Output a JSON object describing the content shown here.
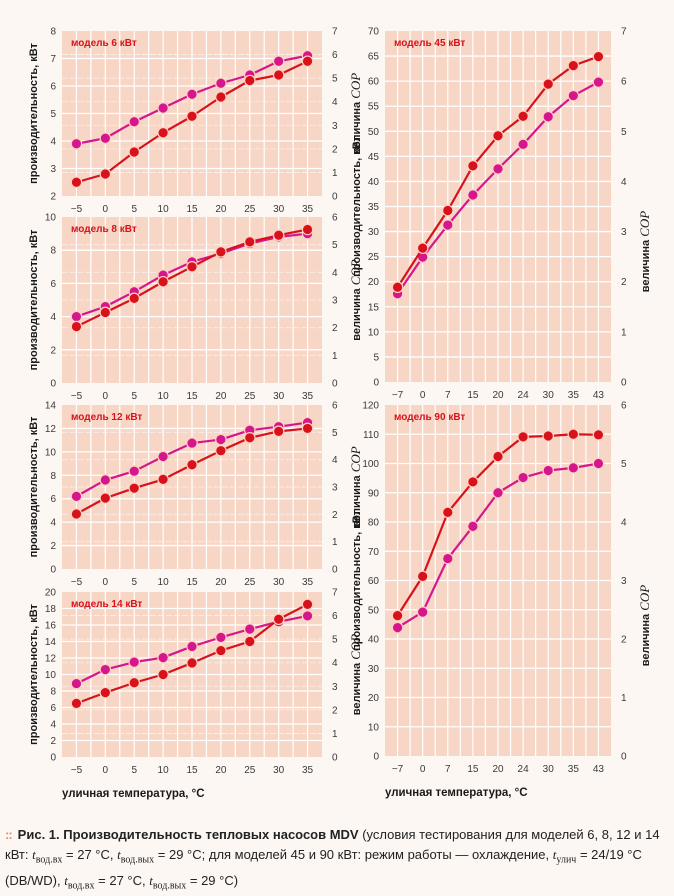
{
  "colors": {
    "page_bg": "#fdf7f3",
    "plot_bg": "#f7d6c6",
    "grid": "#ffffff",
    "series_capacity": "#d8121b",
    "series_cop": "#d6168c",
    "model_label": "#d8121b",
    "caption_dots": "#e38b73"
  },
  "axis_labels": {
    "capacity": "производительность, кВт",
    "cop_prefix": "величина ",
    "cop_italic": "COP",
    "x": "уличная температура, °C"
  },
  "caption": {
    "dots": "::",
    "fig": "Рис. 1.",
    "title": "Производительность тепловых насосов MDV",
    "part1": " (условия тестирования для моделей 6, 8, 12 и 14 кВт: ",
    "t": "t",
    "sub_in": "вод.вх",
    "sub_out": "вод.вых",
    "sub_street": "улич",
    "eq_in": " = 27 °C, ",
    "eq_out1": " = 29 °C; для моделей 45 и 90 кВт: режим работы — охлаждение, ",
    "eq_street": " = 24/19 °C (DB/WD), ",
    "eq_in2": " = 27 °C, ",
    "eq_out2": " = 29 °C)"
  },
  "chart_data": [
    {
      "type": "line",
      "title": "модель 6 кВт",
      "xlabel": "",
      "ylabel": "производительность, кВт",
      "ylabel_right": "величина COP",
      "x": [
        -5,
        0,
        5,
        10,
        15,
        20,
        25,
        30,
        35
      ],
      "ylim": [
        2,
        8
      ],
      "yticks": [
        2,
        3,
        4,
        5,
        6,
        7,
        8
      ],
      "ylim_right": [
        0,
        7
      ],
      "yticks_right": [
        0,
        1,
        2,
        3,
        4,
        5,
        6,
        7
      ],
      "grid": true,
      "series": [
        {
          "name": "производительность",
          "axis": "left",
          "color": "#d8121b",
          "values": [
            2.5,
            2.8,
            3.6,
            4.3,
            4.9,
            5.6,
            6.2,
            6.4,
            6.9
          ]
        },
        {
          "name": "COP",
          "axis": "left",
          "color": "#d6168c",
          "values": [
            3.9,
            4.1,
            4.7,
            5.2,
            5.7,
            6.1,
            6.4,
            6.9,
            7.1
          ]
        }
      ]
    },
    {
      "type": "line",
      "title": "модель 8 кВт",
      "xlabel": "",
      "ylabel": "производительность, кВт",
      "ylabel_right": "величина COP",
      "x": [
        -5,
        0,
        5,
        10,
        15,
        20,
        25,
        30,
        35
      ],
      "ylim": [
        0,
        10
      ],
      "yticks": [
        0,
        2,
        4,
        6,
        8,
        10
      ],
      "ylim_right": [
        0,
        6
      ],
      "yticks_right": [
        0,
        1,
        2,
        3,
        4,
        5,
        6
      ],
      "grid": true,
      "series": [
        {
          "name": "производительность",
          "axis": "left",
          "color": "#d8121b",
          "values": [
            3.4,
            4.25,
            5.1,
            6.1,
            7.0,
            7.9,
            8.5,
            8.9,
            9.25
          ]
        },
        {
          "name": "COP",
          "axis": "left",
          "color": "#d6168c",
          "values": [
            4.0,
            4.6,
            5.5,
            6.5,
            7.3,
            7.8,
            8.4,
            8.8,
            9.0
          ]
        }
      ]
    },
    {
      "type": "line",
      "title": "модель 12 кВт",
      "xlabel": "",
      "ylabel": "производительность, кВт",
      "ylabel_right": "величина COP",
      "x": [
        -5,
        0,
        5,
        10,
        15,
        20,
        25,
        30,
        35
      ],
      "ylim": [
        0,
        14
      ],
      "yticks": [
        0,
        2,
        4,
        6,
        8,
        10,
        12,
        14
      ],
      "ylim_right": [
        0,
        6
      ],
      "yticks_right": [
        0,
        1,
        2,
        3,
        4,
        5,
        6
      ],
      "grid": true,
      "series": [
        {
          "name": "производительность",
          "axis": "left",
          "color": "#d8121b",
          "values": [
            4.7,
            6.05,
            6.9,
            7.65,
            8.9,
            10.1,
            11.2,
            11.75,
            12.0
          ]
        },
        {
          "name": "COP",
          "axis": "left",
          "color": "#d6168c",
          "values": [
            6.2,
            7.6,
            8.35,
            9.6,
            10.75,
            11.05,
            11.85,
            12.15,
            12.5
          ]
        }
      ]
    },
    {
      "type": "line",
      "title": "модель 14 кВт",
      "xlabel": "уличная температура, °C",
      "ylabel": "производительность, кВт",
      "ylabel_right": "величина COP",
      "x": [
        -5,
        0,
        5,
        10,
        15,
        20,
        25,
        30,
        35
      ],
      "ylim": [
        0,
        20
      ],
      "yticks": [
        0,
        2,
        4,
        6,
        8,
        10,
        12,
        14,
        16,
        18,
        20
      ],
      "ylim_right": [
        0,
        7
      ],
      "yticks_right": [
        0,
        1,
        2,
        3,
        4,
        5,
        6,
        7
      ],
      "grid": true,
      "series": [
        {
          "name": "производительность",
          "axis": "left",
          "color": "#d8121b",
          "values": [
            6.5,
            7.8,
            9.0,
            10.0,
            11.4,
            12.9,
            14.0,
            16.7,
            18.5
          ]
        },
        {
          "name": "COP",
          "axis": "left",
          "color": "#d6168c",
          "values": [
            8.9,
            10.6,
            11.5,
            12.05,
            13.4,
            14.5,
            15.5,
            16.4,
            17.1
          ]
        }
      ]
    },
    {
      "type": "line",
      "title": "модель 45 кВт",
      "xlabel": "",
      "ylabel": "производительность, кВт",
      "ylabel_right": "величина COP",
      "x": [
        -7,
        0,
        7,
        15,
        20,
        24,
        30,
        35,
        43
      ],
      "ylim": [
        0,
        70
      ],
      "yticks": [
        0,
        5,
        10,
        15,
        20,
        25,
        30,
        35,
        40,
        45,
        50,
        55,
        60,
        65,
        70
      ],
      "ylim_right": [
        0,
        7
      ],
      "yticks_right": [
        0,
        1,
        2,
        3,
        4,
        5,
        6,
        7
      ],
      "grid": true,
      "series": [
        {
          "name": "производительность",
          "axis": "left",
          "color": "#d8121b",
          "values": [
            18.9,
            26.7,
            34.2,
            43.1,
            49.1,
            53.0,
            59.4,
            63.1,
            64.9
          ]
        },
        {
          "name": "COP",
          "axis": "left",
          "color": "#d6168c",
          "values": [
            17.6,
            24.9,
            31.3,
            37.3,
            42.5,
            47.4,
            52.9,
            57.1,
            59.8
          ]
        }
      ]
    },
    {
      "type": "line",
      "title": "модель 90 кВт",
      "xlabel": "уличная температура, °C",
      "ylabel": "производительность, кВт",
      "ylabel_right": "величина COP",
      "x": [
        -7,
        0,
        7,
        15,
        20,
        24,
        30,
        35,
        43
      ],
      "ylim": [
        0,
        120
      ],
      "yticks": [
        0,
        10,
        20,
        30,
        40,
        50,
        60,
        70,
        80,
        90,
        100,
        110,
        120
      ],
      "ylim_right": [
        0,
        6
      ],
      "yticks_right": [
        0,
        1,
        2,
        3,
        4,
        5,
        6
      ],
      "grid": true,
      "series": [
        {
          "name": "производительность",
          "axis": "left",
          "color": "#d8121b",
          "values": [
            48.0,
            61.4,
            83.3,
            93.7,
            102.4,
            109.1,
            109.4,
            110.0,
            109.8
          ]
        },
        {
          "name": "COP",
          "axis": "left",
          "color": "#d6168c",
          "values": [
            43.9,
            49.2,
            67.5,
            78.5,
            90.0,
            95.2,
            97.6,
            98.5,
            100.0
          ]
        }
      ]
    }
  ]
}
